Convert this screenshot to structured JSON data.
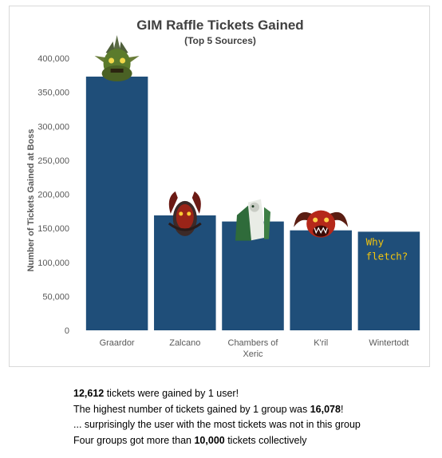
{
  "chart_data": {
    "type": "bar",
    "title": "GIM Raffle Tickets Gained",
    "subtitle": "(Top 5 Sources)",
    "ylabel": "Number of Tickets Gained at Boss",
    "xlabel": "",
    "categories": [
      "Graardor",
      "Zalcano",
      "Chambers of Xeric",
      "K'ril",
      "Wintertodt"
    ],
    "values": [
      373000,
      169000,
      160000,
      147000,
      145000
    ],
    "ylim": [
      0,
      400000
    ],
    "yticks": [
      0,
      50000,
      100000,
      150000,
      200000,
      250000,
      300000,
      350000,
      400000
    ],
    "ytick_labels": [
      "0",
      "50,000",
      "100,000",
      "150,000",
      "200,000",
      "250,000",
      "300,000",
      "350,000",
      "400,000"
    ],
    "grid": false,
    "bar_color": "#1f4e79",
    "annotations": [
      {
        "category": "Wintertodt",
        "lines": [
          "Why",
          "fletch?"
        ],
        "color": "#f2c40e"
      }
    ],
    "icons": [
      "graardor-icon",
      "zalcano-icon",
      "chambers-of-xeric-icon",
      "kril-icon"
    ]
  },
  "stats": [
    {
      "bold": "12,612",
      "rest": " tickets were gained by 1 user!"
    },
    {
      "pre": "The highest number of tickets gained by 1 group was ",
      "bold": "16,078",
      "post": "!"
    },
    {
      "text": "... surprisingly the user with the most tickets was not in this group"
    },
    {
      "pre": "Four groups got more than ",
      "bold": "10,000",
      "post": " tickets collectively"
    }
  ]
}
